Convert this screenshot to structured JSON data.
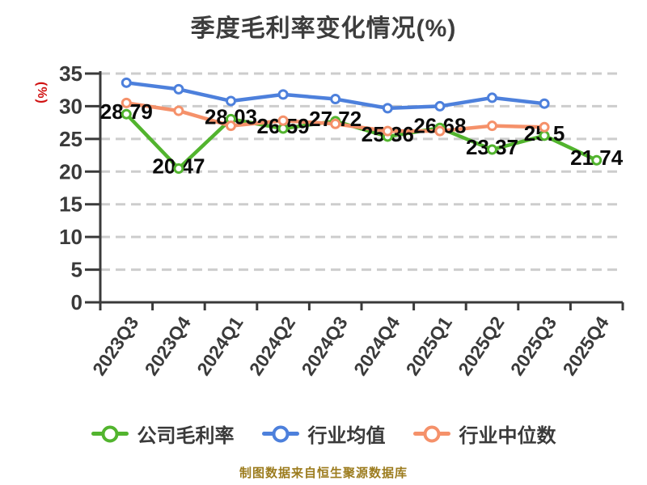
{
  "title": "季度毛利率变化情况(%)",
  "y_axis_unit": "(%)",
  "footer_note": "制图数据来自恒生聚源数据库",
  "colors": {
    "unit_label": "#d01111",
    "footer_text": "#9c7c1e",
    "title_text": "#3d3d3d",
    "axis_line": "#3a3a3a",
    "axis_text": "#3a3a3a",
    "grid_line": "#cdcdcd",
    "data_label": "#0a0a0a",
    "marker_fill": "#ffffff"
  },
  "chart_data": {
    "type": "line",
    "title": "季度毛利率变化情况(%)",
    "ylabel": "(%)",
    "xlabel": "",
    "categories": [
      "2023Q3",
      "2023Q4",
      "2024Q1",
      "2024Q2",
      "2024Q3",
      "2024Q4",
      "2025Q1",
      "2025Q2",
      "2025Q3",
      "2025Q4"
    ],
    "series": [
      {
        "name": "公司毛利率",
        "color": "#52b42e",
        "data_labels": true,
        "values": [
          28.79,
          20.47,
          28.03,
          26.59,
          27.72,
          25.36,
          26.68,
          23.37,
          25.5,
          21.74
        ]
      },
      {
        "name": "行业均值",
        "color": "#4d80dc",
        "data_labels": false,
        "values": [
          33.6,
          32.6,
          30.8,
          31.8,
          31.1,
          29.7,
          30.0,
          31.3,
          30.4,
          null
        ]
      },
      {
        "name": "行业中位数",
        "color": "#f5916a",
        "data_labels": false,
        "values": [
          30.5,
          29.3,
          27.0,
          27.8,
          27.3,
          26.2,
          26.2,
          27.0,
          26.8,
          null
        ]
      }
    ],
    "ylim": [
      0,
      35
    ],
    "yticks": [
      0,
      5,
      10,
      15,
      20,
      25,
      30,
      35
    ],
    "grid": "horizontal-dashed",
    "legend_position": "bottom",
    "marker": "circle-white-fill"
  }
}
